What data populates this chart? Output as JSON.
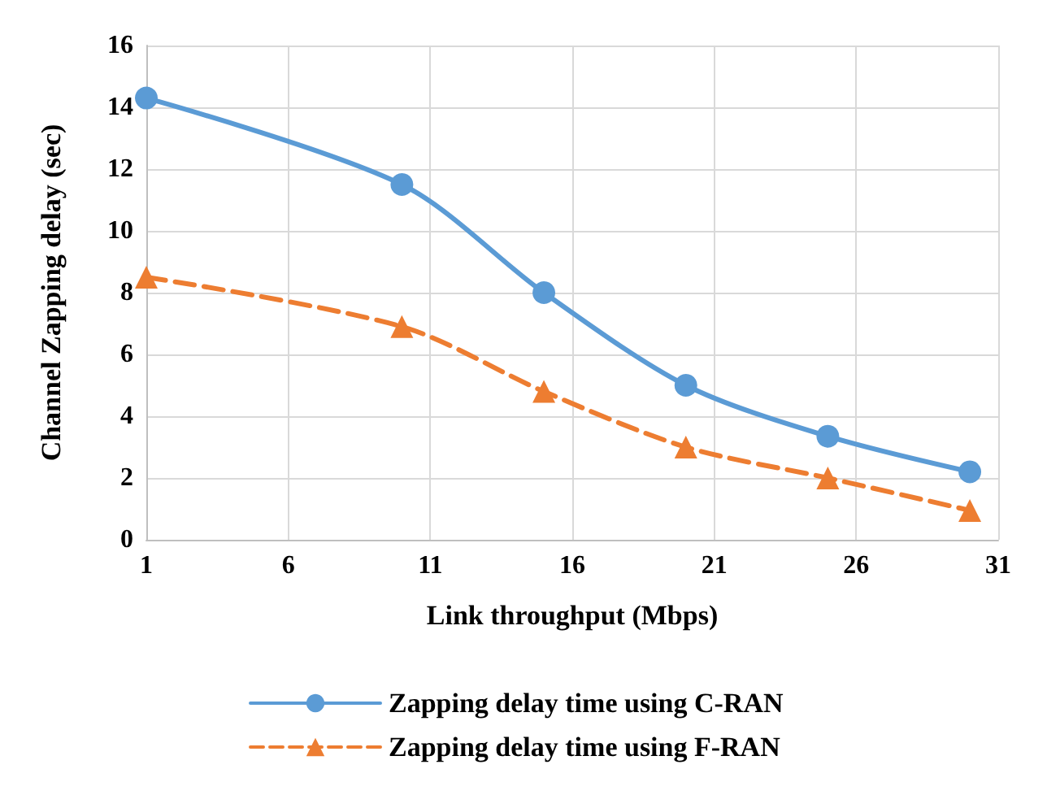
{
  "chart_data": {
    "type": "line",
    "xlabel": "Link throughput (Mbps)",
    "ylabel": "Channel Zapping delay (sec)",
    "x": [
      1,
      10,
      15,
      20,
      25,
      30
    ],
    "series": [
      {
        "name": "Zapping delay time using C-RAN",
        "color": "#5b9bd5",
        "values": [
          14.3,
          11.5,
          8.0,
          5.0,
          3.35,
          2.2
        ],
        "marker": "circle",
        "line_style": "solid"
      },
      {
        "name": "Zapping delay time using F-RAN",
        "color": "#ed7d31",
        "values": [
          8.5,
          6.9,
          4.8,
          3.0,
          2.0,
          0.95
        ],
        "marker": "triangle",
        "line_style": "dashed"
      }
    ],
    "xlim": [
      1,
      31
    ],
    "xticks": [
      1,
      6,
      11,
      16,
      21,
      26,
      31
    ],
    "ylim": [
      0,
      16
    ],
    "yticks": [
      0,
      2,
      4,
      6,
      8,
      10,
      12,
      14,
      16
    ],
    "grid": true,
    "legend": "bottom"
  }
}
